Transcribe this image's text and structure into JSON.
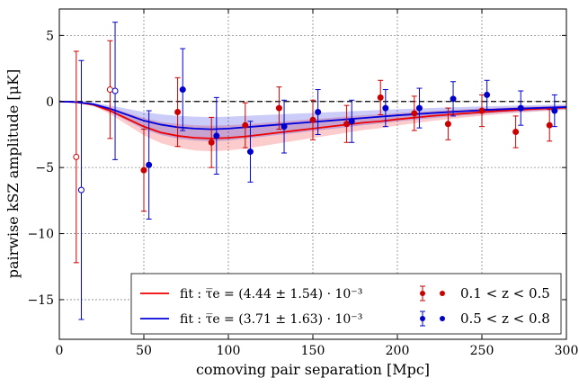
{
  "chart_data": {
    "type": "scatter",
    "title": "",
    "xlabel": "comoving pair separation [Mpc]",
    "ylabel": "pairwise kSZ amplitude [μK]",
    "xlim": [
      0,
      300
    ],
    "ylim": [
      -18,
      7
    ],
    "xticks": [
      0,
      50,
      100,
      150,
      200,
      250,
      300
    ],
    "yticks": [
      -15,
      -10,
      -5,
      0,
      5
    ],
    "grid": true,
    "legend_placement": "bottom-right",
    "series": [
      {
        "name": "0.1 < z < 0.5",
        "color": "#cc0000",
        "x": [
          10,
          30,
          50,
          70,
          90,
          110,
          130,
          150,
          170,
          190,
          210,
          230,
          250,
          270,
          290
        ],
        "y": [
          -4.2,
          0.9,
          -5.2,
          -0.8,
          -3.1,
          -1.8,
          -0.5,
          -1.4,
          -1.7,
          0.3,
          -0.9,
          -1.7,
          -0.7,
          -2.3,
          -1.8
        ],
        "err": [
          8.0,
          3.7,
          3.1,
          2.6,
          1.9,
          1.7,
          1.6,
          1.5,
          1.4,
          1.3,
          1.3,
          1.2,
          1.2,
          1.2,
          1.2
        ],
        "open_markers": [
          true,
          true,
          false,
          false,
          false,
          false,
          false,
          false,
          false,
          false,
          false,
          false,
          false,
          false,
          false
        ]
      },
      {
        "name": "0.5 < z < 0.8",
        "color": "#0000cc",
        "x": [
          13,
          33,
          53,
          73,
          93,
          113,
          133,
          153,
          173,
          193,
          213,
          233,
          253,
          273,
          293
        ],
        "y": [
          -6.7,
          0.8,
          -4.8,
          0.9,
          -2.6,
          -3.8,
          -1.9,
          -0.8,
          -1.5,
          -0.5,
          -0.5,
          0.2,
          0.5,
          -0.5,
          -0.7
        ],
        "err": [
          9.8,
          5.2,
          4.1,
          3.1,
          2.9,
          2.3,
          2.0,
          1.7,
          1.6,
          1.4,
          1.5,
          1.3,
          1.1,
          1.3,
          1.2
        ],
        "open_markers": [
          true,
          true,
          false,
          false,
          false,
          false,
          false,
          false,
          false,
          false,
          false,
          false,
          false,
          false,
          false
        ]
      }
    ],
    "fits": [
      {
        "name": "fit : τ̅e = (4.44 ± 1.54) · 10⁻³",
        "color": "#ee0000",
        "x": [
          0,
          10,
          20,
          30,
          40,
          50,
          60,
          70,
          80,
          90,
          100,
          110,
          120,
          130,
          140,
          150,
          160,
          170,
          180,
          190,
          200,
          220,
          240,
          260,
          280,
          300
        ],
        "y": [
          0,
          -0.05,
          -0.25,
          -0.7,
          -1.3,
          -1.9,
          -2.35,
          -2.6,
          -2.75,
          -2.8,
          -2.75,
          -2.65,
          -2.5,
          -2.35,
          -2.2,
          -2.05,
          -1.9,
          -1.75,
          -1.6,
          -1.5,
          -1.35,
          -1.1,
          -0.9,
          -0.72,
          -0.58,
          -0.47
        ],
        "band": [
          0,
          0.02,
          0.08,
          0.25,
          0.45,
          0.65,
          0.8,
          0.9,
          0.95,
          0.97,
          0.95,
          0.92,
          0.87,
          0.82,
          0.76,
          0.71,
          0.66,
          0.61,
          0.56,
          0.52,
          0.47,
          0.38,
          0.31,
          0.25,
          0.2,
          0.16
        ]
      },
      {
        "name": "fit : τ̅e = (3.71 ± 1.63) · 10⁻³",
        "color": "#0000dd",
        "x": [
          0,
          10,
          20,
          30,
          40,
          50,
          60,
          70,
          80,
          90,
          100,
          110,
          120,
          130,
          140,
          150,
          160,
          170,
          180,
          190,
          200,
          220,
          240,
          260,
          280,
          300
        ],
        "y": [
          0,
          -0.04,
          -0.2,
          -0.55,
          -1.0,
          -1.45,
          -1.75,
          -1.95,
          -2.05,
          -2.1,
          -2.05,
          -1.95,
          -1.85,
          -1.75,
          -1.65,
          -1.55,
          -1.45,
          -1.35,
          -1.25,
          -1.15,
          -1.05,
          -0.88,
          -0.73,
          -0.6,
          -0.5,
          -0.42
        ],
        "band": [
          0,
          0.02,
          0.09,
          0.25,
          0.45,
          0.65,
          0.78,
          0.86,
          0.9,
          0.92,
          0.9,
          0.86,
          0.82,
          0.77,
          0.73,
          0.68,
          0.64,
          0.6,
          0.55,
          0.51,
          0.46,
          0.39,
          0.32,
          0.26,
          0.22,
          0.18
        ]
      }
    ]
  }
}
